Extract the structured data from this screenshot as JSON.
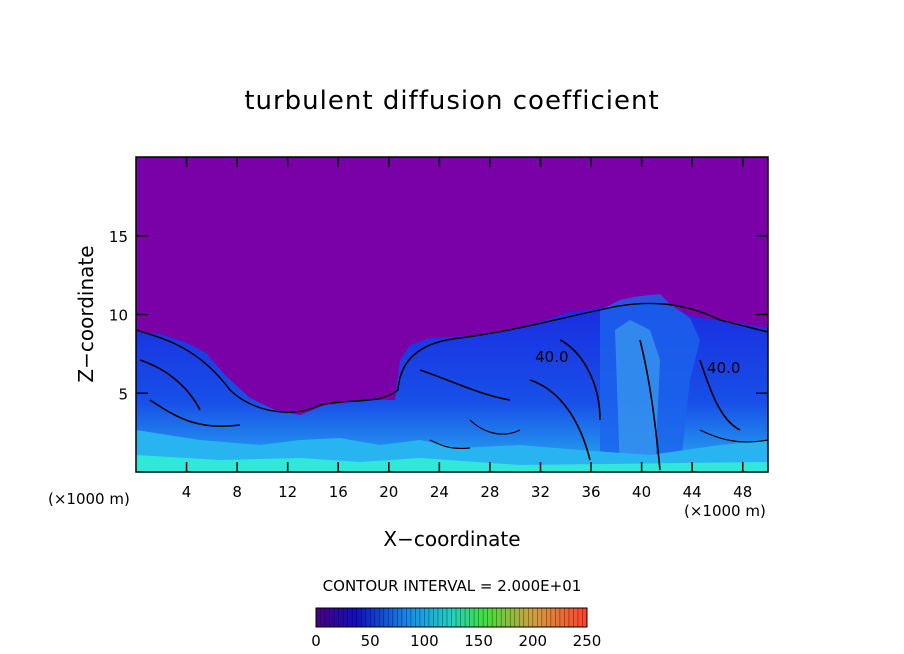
{
  "chart_data": {
    "type": "heatmap",
    "title": "turbulent diffusion coefficient",
    "xlabel": "X−coordinate",
    "ylabel": "Z−coordinate",
    "x_unit_left": "(×1000 m)",
    "x_unit_right": "(×1000 m)",
    "xlim": [
      0,
      50
    ],
    "ylim": [
      0,
      20
    ],
    "x_ticks": [
      "4",
      "8",
      "12",
      "16",
      "20",
      "24",
      "28",
      "32",
      "36",
      "40",
      "44",
      "48"
    ],
    "x_tick_values": [
      4,
      8,
      12,
      16,
      20,
      24,
      28,
      32,
      36,
      40,
      44,
      48
    ],
    "y_ticks": [
      "5",
      "10",
      "15"
    ],
    "y_tick_values": [
      5,
      10,
      15
    ],
    "contour_labels": [
      {
        "text": "40.0",
        "x": 32.9,
        "z": 7.3
      },
      {
        "text": "40.0",
        "x": 46.5,
        "z": 6.6
      }
    ],
    "contour_interval_text": "CONTOUR INTERVAL = 2.000E+01",
    "colorbar": {
      "min": 0,
      "max": 250,
      "ticks": [
        "0",
        "50",
        "100",
        "150",
        "200",
        "250"
      ],
      "tick_values": [
        0,
        50,
        100,
        150,
        200,
        250
      ]
    },
    "background_value": 0,
    "colors": {
      "background_field": "#7a00a8",
      "low": "#1828e8",
      "mid": "#2aa8f0",
      "high": "#30f0d8"
    }
  }
}
